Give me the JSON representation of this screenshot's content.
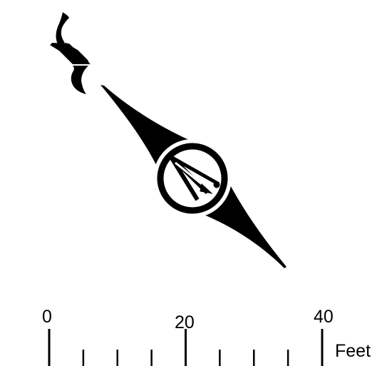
{
  "north_arrow": {
    "letter": "N",
    "color": "#000000",
    "icon": "compass-rose-north-arrow-icon"
  },
  "scale_bar": {
    "color": "#000000",
    "labels": [
      "0",
      "20",
      "40"
    ],
    "unit": "Feet",
    "max_value": 40,
    "major_tick_every": 20,
    "minor_tick_every": 5
  }
}
